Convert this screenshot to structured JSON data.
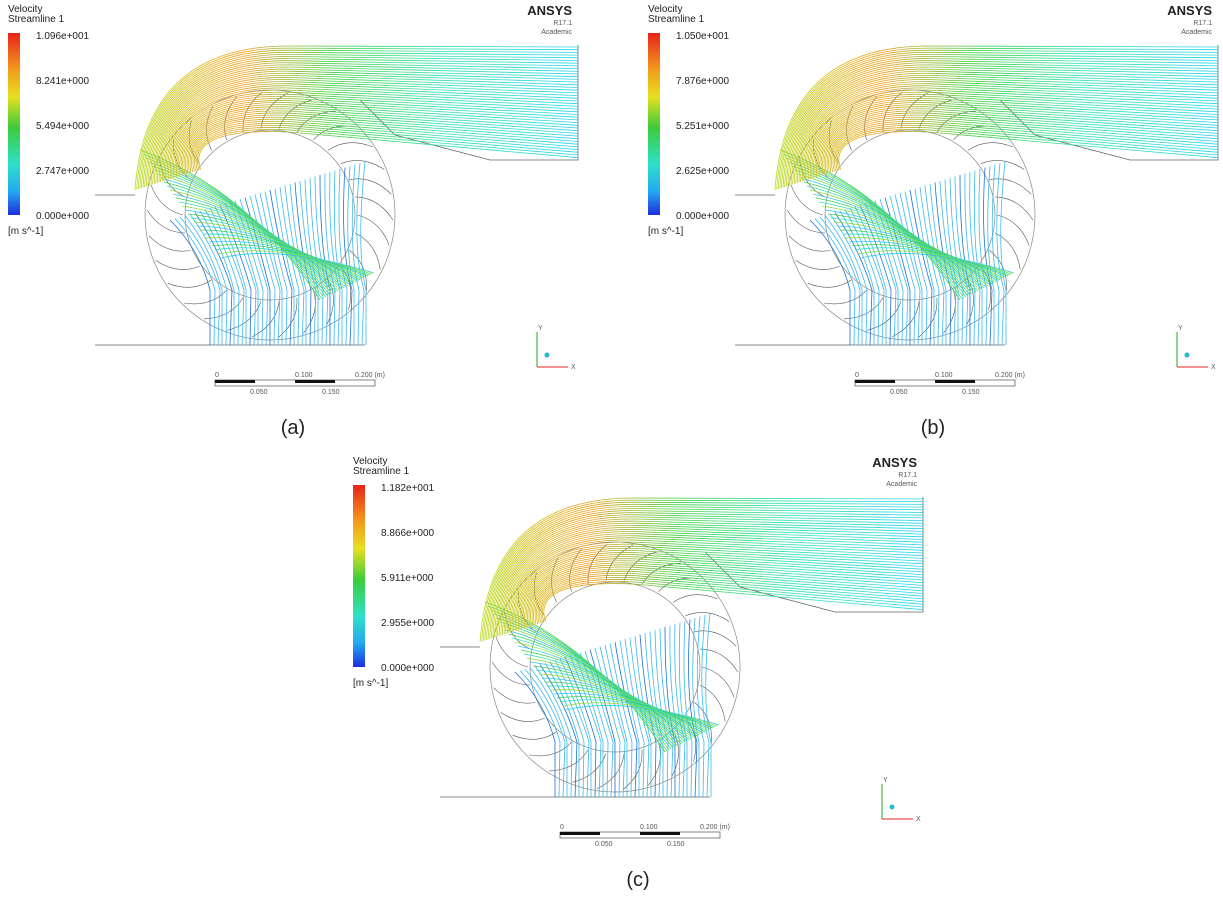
{
  "panels": [
    {
      "legend": {
        "title": "Velocity",
        "subtitle": "Streamline 1",
        "labels": [
          "1.096e+001",
          "8.241e+000",
          "5.494e+000",
          "2.747e+000",
          "0.000e+000"
        ],
        "unit": "[m s^-1]"
      },
      "logo": {
        "name": "ANSYS",
        "version": "R17.1",
        "edition": "Academic"
      },
      "scale": {
        "top": [
          "0",
          "0.100",
          "0.200 (m)"
        ],
        "bottom": [
          "0.050",
          "0.150"
        ]
      },
      "axes": {
        "y": "Y",
        "x": "X"
      },
      "caption": "(a)"
    },
    {
      "legend": {
        "title": "Velocity",
        "subtitle": "Streamline 1",
        "labels": [
          "1.050e+001",
          "7.876e+000",
          "5.251e+000",
          "2.625e+000",
          "0.000e+000"
        ],
        "unit": "[m s^-1]"
      },
      "logo": {
        "name": "ANSYS",
        "version": "R17.1",
        "edition": "Academic"
      },
      "scale": {
        "top": [
          "0",
          "0.100",
          "0.200 (m)"
        ],
        "bottom": [
          "0.050",
          "0.150"
        ]
      },
      "axes": {
        "y": "Y",
        "x": "X"
      },
      "caption": "(b)"
    },
    {
      "legend": {
        "title": "Velocity",
        "subtitle": "Streamline 1",
        "labels": [
          "1.182e+001",
          "8.866e+000",
          "5.911e+000",
          "2.955e+000",
          "0.000e+000"
        ],
        "unit": "[m s^-1]"
      },
      "logo": {
        "name": "ANSYS",
        "version": "R17.1",
        "edition": "Academic"
      },
      "scale": {
        "top": [
          "0",
          "0.100",
          "0.200 (m)"
        ],
        "bottom": [
          "0.050",
          "0.150"
        ]
      },
      "axes": {
        "y": "Y",
        "x": "X"
      },
      "caption": "(c)"
    }
  ]
}
